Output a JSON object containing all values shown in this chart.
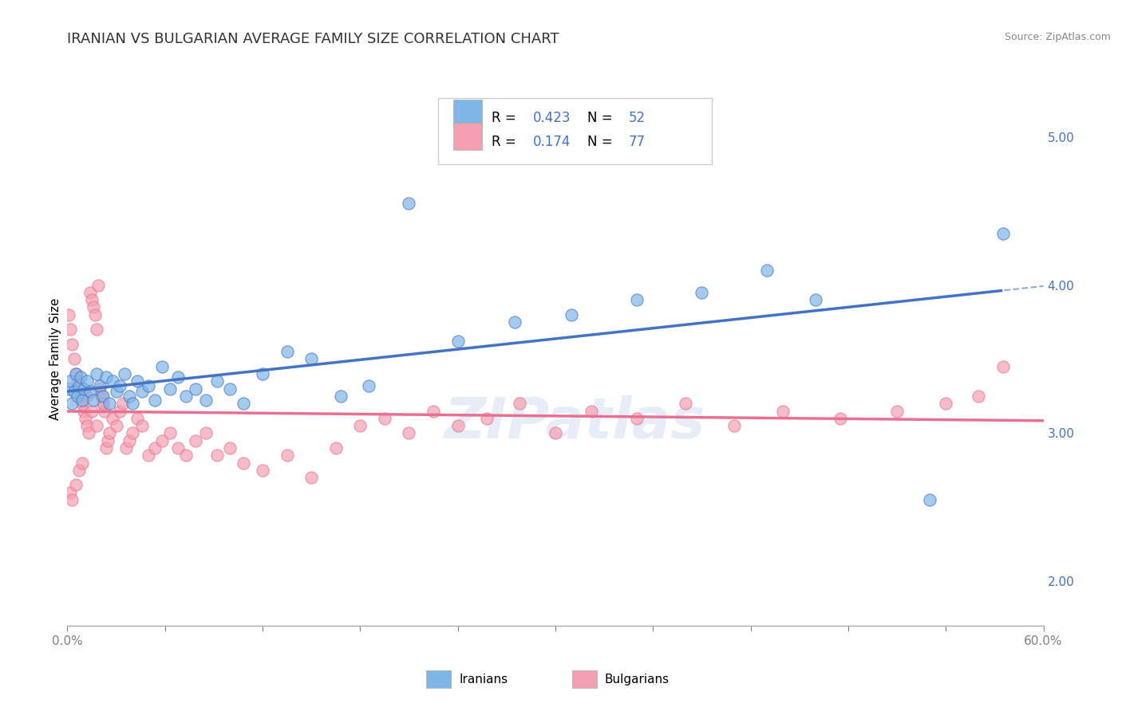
{
  "title": "IRANIAN VS BULGARIAN AVERAGE FAMILY SIZE CORRELATION CHART",
  "source_text": "Source: ZipAtlas.com",
  "ylabel": "Average Family Size",
  "xlim": [
    0.0,
    0.6
  ],
  "ylim": [
    1.7,
    5.3
  ],
  "yticks": [
    2.0,
    3.0,
    4.0,
    5.0
  ],
  "xticks": [
    0.0,
    0.06,
    0.12,
    0.18,
    0.24,
    0.3,
    0.36,
    0.42,
    0.48,
    0.54,
    0.6
  ],
  "xtick_labels_show": [
    "0.0%",
    "",
    "",
    "",
    "",
    "",
    "",
    "",
    "",
    "",
    "60.0%"
  ],
  "title_fontsize": 13,
  "label_fontsize": 11,
  "tick_fontsize": 11,
  "iranian_color": "#7EB6E8",
  "bulgarian_color": "#F4A0B0",
  "iranian_line_color": "#4472C4",
  "bulgarian_line_color": "#E87090",
  "iranian_R": 0.423,
  "iranian_N": 52,
  "bulgarian_R": 0.174,
  "bulgarian_N": 77,
  "watermark": "ZIPatlas",
  "iranians_x": [
    0.001,
    0.002,
    0.003,
    0.004,
    0.005,
    0.006,
    0.007,
    0.008,
    0.009,
    0.01,
    0.012,
    0.014,
    0.016,
    0.018,
    0.02,
    0.022,
    0.024,
    0.026,
    0.028,
    0.03,
    0.032,
    0.035,
    0.038,
    0.04,
    0.043,
    0.046,
    0.05,
    0.054,
    0.058,
    0.063,
    0.068,
    0.073,
    0.079,
    0.085,
    0.092,
    0.1,
    0.108,
    0.12,
    0.135,
    0.15,
    0.168,
    0.185,
    0.21,
    0.24,
    0.275,
    0.31,
    0.35,
    0.39,
    0.43,
    0.46,
    0.53,
    0.575
  ],
  "iranians_y": [
    3.3,
    3.35,
    3.2,
    3.28,
    3.4,
    3.25,
    3.32,
    3.38,
    3.22,
    3.3,
    3.35,
    3.28,
    3.22,
    3.4,
    3.32,
    3.25,
    3.38,
    3.2,
    3.35,
    3.28,
    3.32,
    3.4,
    3.25,
    3.2,
    3.35,
    3.28,
    3.32,
    3.22,
    3.45,
    3.3,
    3.38,
    3.25,
    3.3,
    3.22,
    3.35,
    3.3,
    3.2,
    3.4,
    3.55,
    3.5,
    3.25,
    3.32,
    4.55,
    3.62,
    3.75,
    3.8,
    3.9,
    3.95,
    4.1,
    3.9,
    2.55,
    4.35
  ],
  "bulgarians_x": [
    0.001,
    0.002,
    0.003,
    0.004,
    0.005,
    0.006,
    0.007,
    0.008,
    0.009,
    0.01,
    0.011,
    0.012,
    0.013,
    0.014,
    0.015,
    0.016,
    0.017,
    0.018,
    0.019,
    0.02,
    0.021,
    0.022,
    0.023,
    0.024,
    0.025,
    0.026,
    0.028,
    0.03,
    0.032,
    0.034,
    0.036,
    0.038,
    0.04,
    0.043,
    0.046,
    0.05,
    0.054,
    0.058,
    0.063,
    0.068,
    0.073,
    0.079,
    0.085,
    0.092,
    0.1,
    0.108,
    0.12,
    0.135,
    0.15,
    0.165,
    0.18,
    0.195,
    0.21,
    0.225,
    0.24,
    0.258,
    0.278,
    0.3,
    0.322,
    0.35,
    0.38,
    0.41,
    0.44,
    0.475,
    0.51,
    0.54,
    0.56,
    0.575,
    0.002,
    0.003,
    0.005,
    0.007,
    0.009,
    0.012,
    0.015,
    0.018,
    0.022
  ],
  "bulgarians_y": [
    3.8,
    3.7,
    3.6,
    3.5,
    3.4,
    3.35,
    3.3,
    3.25,
    3.2,
    3.15,
    3.1,
    3.05,
    3.0,
    3.95,
    3.9,
    3.85,
    3.8,
    3.7,
    4.0,
    3.3,
    3.25,
    3.2,
    3.15,
    2.9,
    2.95,
    3.0,
    3.1,
    3.05,
    3.15,
    3.2,
    2.9,
    2.95,
    3.0,
    3.1,
    3.05,
    2.85,
    2.9,
    2.95,
    3.0,
    2.9,
    2.85,
    2.95,
    3.0,
    2.85,
    2.9,
    2.8,
    2.75,
    2.85,
    2.7,
    2.9,
    3.05,
    3.1,
    3.0,
    3.15,
    3.05,
    3.1,
    3.2,
    3.0,
    3.15,
    3.1,
    3.2,
    3.05,
    3.15,
    3.1,
    3.15,
    3.2,
    3.25,
    3.45,
    2.6,
    2.55,
    2.65,
    2.75,
    2.8,
    3.25,
    3.15,
    3.05,
    3.2
  ]
}
